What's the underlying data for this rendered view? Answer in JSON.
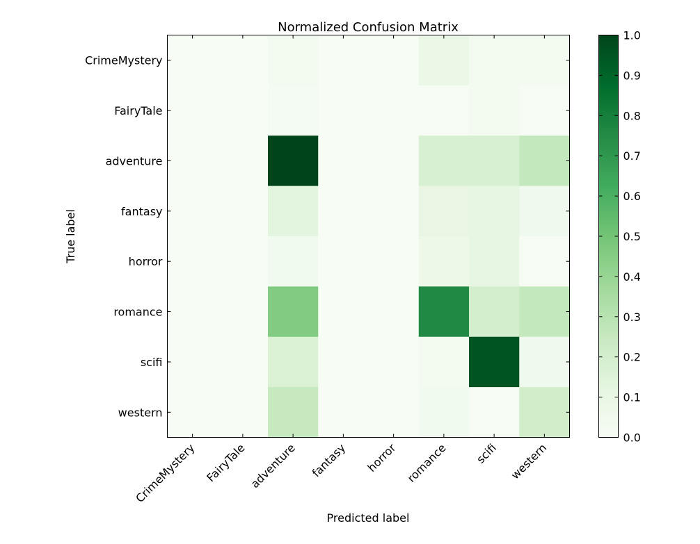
{
  "chart_data": {
    "type": "heatmap",
    "title": "Normalized Confusion Matrix",
    "xlabel": "Predicted label",
    "ylabel": "True label",
    "x_categories": [
      "CrimeMystery",
      "FairyTale",
      "adventure",
      "fantasy",
      "horror",
      "romance",
      "scifi",
      "western"
    ],
    "y_categories": [
      "CrimeMystery",
      "FairyTale",
      "adventure",
      "fantasy",
      "horror",
      "romance",
      "scifi",
      "western"
    ],
    "matrix": [
      [
        0.0,
        0.0,
        0.03,
        0.0,
        0.0,
        0.08,
        0.03,
        0.03
      ],
      [
        0.0,
        0.0,
        0.02,
        0.0,
        0.0,
        0.01,
        0.03,
        0.01
      ],
      [
        0.0,
        0.0,
        1.0,
        0.0,
        0.0,
        0.18,
        0.18,
        0.26
      ],
      [
        0.0,
        0.0,
        0.13,
        0.0,
        0.0,
        0.1,
        0.11,
        0.05
      ],
      [
        0.0,
        0.0,
        0.04,
        0.0,
        0.0,
        0.07,
        0.11,
        0.01
      ],
      [
        0.0,
        0.0,
        0.46,
        0.0,
        0.0,
        0.76,
        0.2,
        0.26
      ],
      [
        0.0,
        0.0,
        0.17,
        0.0,
        0.0,
        0.03,
        0.95,
        0.05
      ],
      [
        0.0,
        0.0,
        0.25,
        0.0,
        0.0,
        0.04,
        0.01,
        0.21
      ]
    ],
    "colormap": "Greens",
    "colorbar": {
      "range": [
        0.0,
        1.0
      ],
      "ticks": [
        "0.0",
        "0.1",
        "0.2",
        "0.3",
        "0.4",
        "0.5",
        "0.6",
        "0.7",
        "0.8",
        "0.9",
        "1.0"
      ]
    },
    "colors": {
      "low": "#f7fcf5",
      "high": "#00441b",
      "axis": "#000000"
    }
  }
}
